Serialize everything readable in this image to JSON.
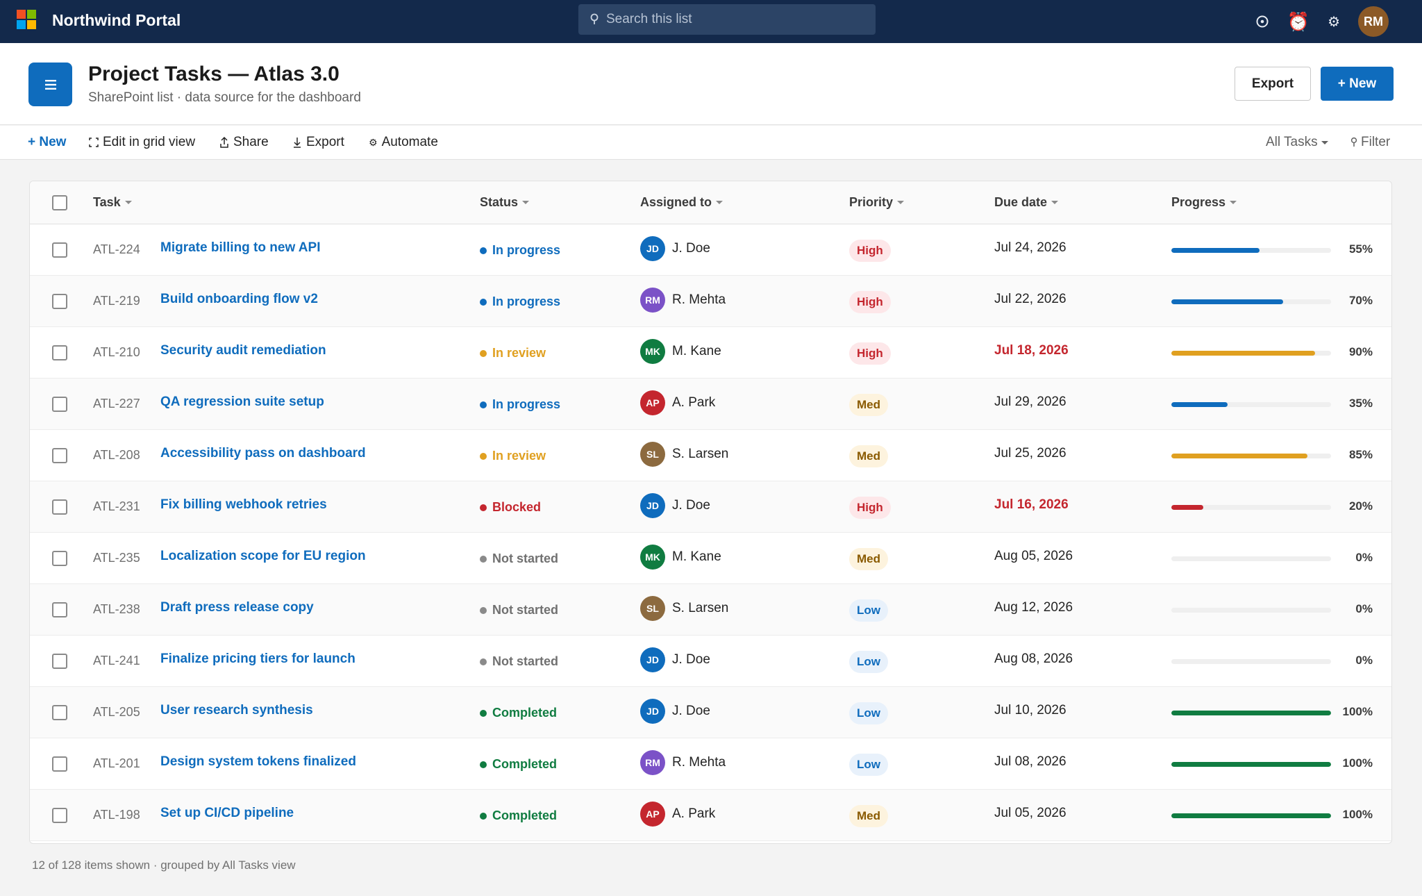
{
  "app": {
    "name": "Northwind Portal",
    "user_initials": "RM"
  },
  "search": {
    "placeholder": "Search this list"
  },
  "header": {
    "title": "Project Tasks — Atlas 3.0",
    "subtitle": "SharePoint list · data source for the dashboard",
    "export_label": "Export",
    "new_label": "+ New"
  },
  "commands": {
    "new": "+ New",
    "edit_grid": "Edit in grid view",
    "share": "Share",
    "export": "Export",
    "automate": "Automate",
    "view": "All Tasks",
    "filter": "Filter"
  },
  "columns": {
    "task": "Task",
    "status": "Status",
    "assigned": "Assigned to",
    "priority": "Priority",
    "due": "Due date",
    "progress": "Progress"
  },
  "colors": {
    "accent": "#0f6cbd",
    "topbar": "#13294b",
    "in_progress": "#0f6cbd",
    "in_review": "#e0a020",
    "blocked": "#c4262e",
    "not_started": "#8a8a8a",
    "completed": "#107c41"
  },
  "rows": [
    {
      "id": "ATL-224",
      "title": "Migrate billing to new API",
      "status": "In progress",
      "initials": "JD",
      "name": "J. Doe",
      "priority": "High",
      "due": "Jul 24, 2026",
      "overdue": false,
      "progress": 55,
      "progress_label": "55%"
    },
    {
      "id": "ATL-219",
      "title": "Build onboarding flow v2",
      "status": "In progress",
      "initials": "RM",
      "name": "R. Mehta",
      "priority": "High",
      "due": "Jul 22, 2026",
      "overdue": false,
      "progress": 70,
      "progress_label": "70%"
    },
    {
      "id": "ATL-210",
      "title": "Security audit remediation",
      "status": "In review",
      "initials": "MK",
      "name": "M. Kane",
      "priority": "High",
      "due": "Jul 18, 2026",
      "overdue": true,
      "progress": 90,
      "progress_label": "90%"
    },
    {
      "id": "ATL-227",
      "title": "QA regression suite setup",
      "status": "In progress",
      "initials": "AP",
      "name": "A. Park",
      "priority": "Med",
      "due": "Jul 29, 2026",
      "overdue": false,
      "progress": 35,
      "progress_label": "35%"
    },
    {
      "id": "ATL-208",
      "title": "Accessibility pass on dashboard",
      "status": "In review",
      "initials": "SL",
      "name": "S. Larsen",
      "priority": "Med",
      "due": "Jul 25, 2026",
      "overdue": false,
      "progress": 85,
      "progress_label": "85%"
    },
    {
      "id": "ATL-231",
      "title": "Fix billing webhook retries",
      "status": "Blocked",
      "initials": "JD",
      "name": "J. Doe",
      "priority": "High",
      "due": "Jul 16, 2026",
      "overdue": true,
      "progress": 20,
      "progress_label": "20%"
    },
    {
      "id": "ATL-235",
      "title": "Localization scope for EU region",
      "status": "Not started",
      "initials": "MK",
      "name": "M. Kane",
      "priority": "Med",
      "due": "Aug 05, 2026",
      "overdue": false,
      "progress": 0,
      "progress_label": "0%"
    },
    {
      "id": "ATL-238",
      "title": "Draft press release copy",
      "status": "Not started",
      "initials": "SL",
      "name": "S. Larsen",
      "priority": "Low",
      "due": "Aug 12, 2026",
      "overdue": false,
      "progress": 0,
      "progress_label": "0%"
    },
    {
      "id": "ATL-241",
      "title": "Finalize pricing tiers for launch",
      "status": "Not started",
      "initials": "JD",
      "name": "J. Doe",
      "priority": "Low",
      "due": "Aug 08, 2026",
      "overdue": false,
      "progress": 0,
      "progress_label": "0%"
    },
    {
      "id": "ATL-205",
      "title": "User research synthesis",
      "status": "Completed",
      "initials": "JD",
      "name": "J. Doe",
      "priority": "Low",
      "due": "Jul 10, 2026",
      "overdue": false,
      "progress": 100,
      "progress_label": "100%"
    },
    {
      "id": "ATL-201",
      "title": "Design system tokens finalized",
      "status": "Completed",
      "initials": "RM",
      "name": "R. Mehta",
      "priority": "Low",
      "due": "Jul 08, 2026",
      "overdue": false,
      "progress": 100,
      "progress_label": "100%"
    },
    {
      "id": "ATL-198",
      "title": "Set up CI/CD pipeline",
      "status": "Completed",
      "initials": "AP",
      "name": "A. Park",
      "priority": "Med",
      "due": "Jul 05, 2026",
      "overdue": false,
      "progress": 100,
      "progress_label": "100%"
    }
  ],
  "footer": {
    "note": "12 of 128 items shown · grouped by All Tasks view"
  }
}
